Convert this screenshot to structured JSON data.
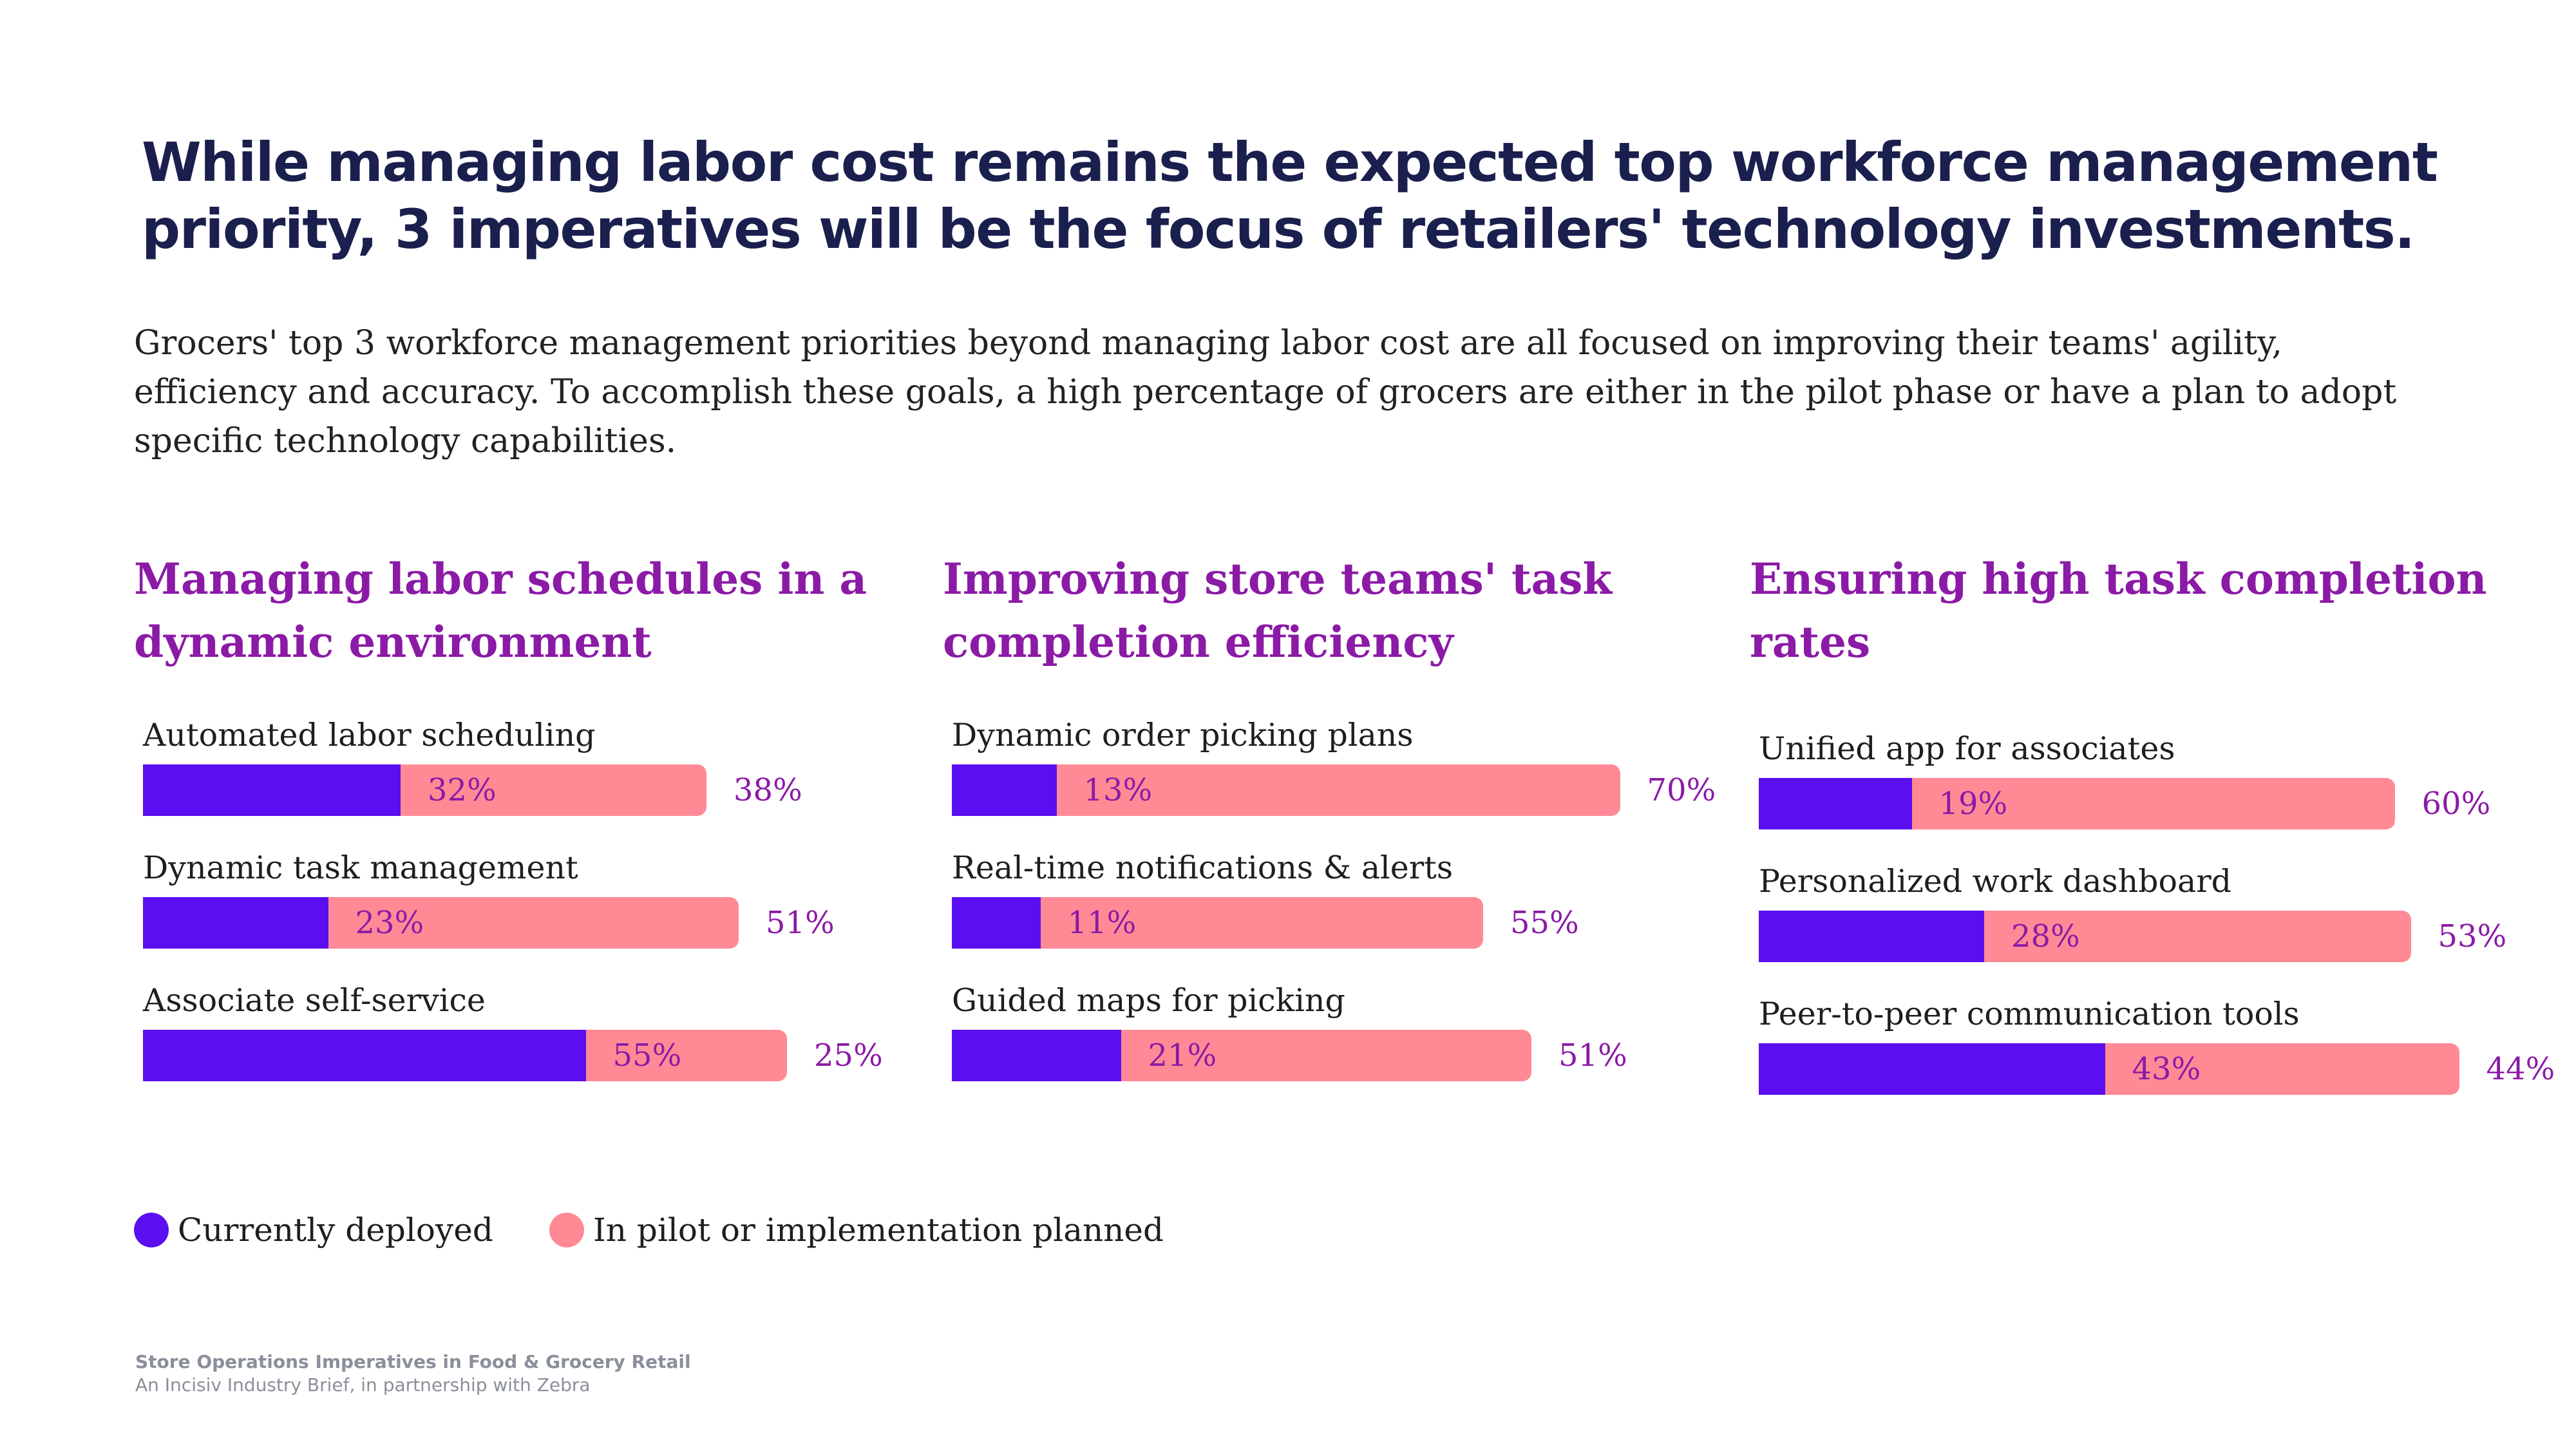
{
  "title": "While managing labor cost remains the expected top workforce management priority, 3 imperatives will be the focus of retailers' technology investments.",
  "intro": "Grocers' top 3 workforce management priorities beyond managing labor cost are all focused on improving their teams' agility, efficiency and accuracy. To accomplish these goals, a high percentage of grocers are either in the pilot phase or have a plan to adopt specific technology capabilities.",
  "colors": {
    "deployed": "#5b0ff0",
    "planned": "#ff8a96",
    "heading": "#8b1aa6",
    "title": "#1a1f4e"
  },
  "legend": {
    "deployed": "Currently deployed",
    "planned": "In pilot or implementation planned"
  },
  "chart_data": [
    {
      "type": "bar",
      "orientation": "horizontal",
      "stacked": true,
      "title": "Managing labor schedules in a dynamic environment",
      "categories": [
        "Automated labor scheduling",
        "Dynamic task management",
        "Associate self-service"
      ],
      "series": [
        {
          "name": "Currently deployed",
          "values": [
            32,
            23,
            55
          ]
        },
        {
          "name": "In pilot or implementation planned",
          "values": [
            38,
            51,
            25
          ]
        }
      ],
      "value_labels": [
        {
          "deployed": "32%",
          "planned": "38%"
        },
        {
          "deployed": "23%",
          "planned": "51%"
        },
        {
          "deployed": "55%",
          "planned": "25%"
        }
      ],
      "xlim": [
        0,
        100
      ]
    },
    {
      "type": "bar",
      "orientation": "horizontal",
      "stacked": true,
      "title": "Improving store teams' task completion efficiency",
      "categories": [
        "Dynamic order picking plans",
        "Real-time notifications & alerts",
        "Guided maps for picking"
      ],
      "series": [
        {
          "name": "Currently deployed",
          "values": [
            13,
            11,
            21
          ]
        },
        {
          "name": "In pilot or implementation planned",
          "values": [
            70,
            55,
            51
          ]
        }
      ],
      "value_labels": [
        {
          "deployed": "13%",
          "planned": "70%"
        },
        {
          "deployed": "11%",
          "planned": "55%"
        },
        {
          "deployed": "21%",
          "planned": "51%"
        }
      ],
      "xlim": [
        0,
        100
      ]
    },
    {
      "type": "bar",
      "orientation": "horizontal",
      "stacked": true,
      "title": "Ensuring high task completion rates",
      "categories": [
        "Unified app for associates",
        "Personalized work dashboard",
        "Peer-to-peer communication tools"
      ],
      "series": [
        {
          "name": "Currently deployed",
          "values": [
            19,
            28,
            43
          ]
        },
        {
          "name": "In pilot or implementation planned",
          "values": [
            60,
            53,
            44
          ]
        }
      ],
      "value_labels": [
        {
          "deployed": "19%",
          "planned": "60%"
        },
        {
          "deployed": "28%",
          "planned": "53%"
        },
        {
          "deployed": "43%",
          "planned": "44%"
        }
      ],
      "xlim": [
        0,
        100
      ]
    }
  ],
  "footer": {
    "title": "Store Operations Imperatives in Food & Grocery Retail",
    "subtitle": "An Incisiv Industry Brief, in partnership with Zebra"
  }
}
